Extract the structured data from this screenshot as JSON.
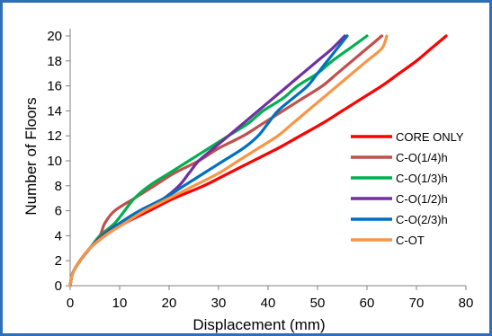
{
  "chart_data": {
    "type": "line",
    "xlabel": "Displacement (mm)",
    "ylabel": "Number of Floors",
    "xlim": [
      0,
      80
    ],
    "ylim": [
      0,
      20
    ],
    "xticks": [
      0,
      10,
      20,
      30,
      40,
      50,
      60,
      70,
      80
    ],
    "yticks": [
      0,
      2,
      4,
      6,
      8,
      10,
      12,
      14,
      16,
      18,
      20
    ],
    "grid": false,
    "legend_position": "right",
    "series": [
      {
        "name": "CORE ONLY",
        "color": "#ff0000",
        "points": [
          [
            0,
            0
          ],
          [
            0.5,
            1
          ],
          [
            2,
            2
          ],
          [
            4,
            3
          ],
          [
            7,
            4
          ],
          [
            11,
            5
          ],
          [
            16,
            6
          ],
          [
            21,
            7
          ],
          [
            27,
            8
          ],
          [
            32,
            9
          ],
          [
            37,
            10
          ],
          [
            42,
            11
          ],
          [
            46.5,
            12
          ],
          [
            51,
            13
          ],
          [
            55,
            14
          ],
          [
            59,
            15
          ],
          [
            63,
            16
          ],
          [
            66.5,
            17
          ],
          [
            70,
            18
          ],
          [
            73,
            19
          ],
          [
            76,
            20
          ]
        ]
      },
      {
        "name": "C-O(1/4)h",
        "color": "#c0504d",
        "points": [
          [
            0,
            0
          ],
          [
            0.5,
            1
          ],
          [
            2,
            2
          ],
          [
            4,
            3
          ],
          [
            6,
            4
          ],
          [
            7,
            5
          ],
          [
            9,
            6
          ],
          [
            13,
            7
          ],
          [
            17,
            8
          ],
          [
            21,
            9
          ],
          [
            26,
            10
          ],
          [
            30,
            11
          ],
          [
            35,
            12
          ],
          [
            39,
            13
          ],
          [
            43,
            14
          ],
          [
            47,
            15
          ],
          [
            51,
            16
          ],
          [
            54,
            17
          ],
          [
            57,
            18
          ],
          [
            60,
            19
          ],
          [
            63,
            20
          ]
        ]
      },
      {
        "name": "C-O(1/3)h",
        "color": "#00b050",
        "points": [
          [
            0,
            0
          ],
          [
            0.5,
            1
          ],
          [
            2,
            2
          ],
          [
            4,
            3
          ],
          [
            6,
            4
          ],
          [
            9,
            5
          ],
          [
            11,
            6
          ],
          [
            13,
            7
          ],
          [
            16,
            8
          ],
          [
            20,
            9
          ],
          [
            24,
            10
          ],
          [
            28,
            11
          ],
          [
            32,
            12
          ],
          [
            36,
            13
          ],
          [
            39,
            14
          ],
          [
            43,
            15
          ],
          [
            46,
            16
          ],
          [
            50,
            17
          ],
          [
            53,
            18
          ],
          [
            56.5,
            19
          ],
          [
            60,
            20
          ]
        ]
      },
      {
        "name": "C-O(1/2)h",
        "color": "#7030a0",
        "points": [
          [
            0,
            0
          ],
          [
            0.5,
            1
          ],
          [
            2,
            2
          ],
          [
            4,
            3
          ],
          [
            6.5,
            4
          ],
          [
            10,
            5
          ],
          [
            15,
            6
          ],
          [
            19,
            7
          ],
          [
            22,
            8
          ],
          [
            24,
            9
          ],
          [
            26,
            10
          ],
          [
            29,
            11
          ],
          [
            32,
            12
          ],
          [
            35,
            13
          ],
          [
            38,
            14
          ],
          [
            41,
            15
          ],
          [
            44,
            16
          ],
          [
            47,
            17
          ],
          [
            50,
            18
          ],
          [
            53,
            19
          ],
          [
            55.5,
            20
          ]
        ]
      },
      {
        "name": "C-O(2/3)h",
        "color": "#0070c0",
        "points": [
          [
            0,
            0
          ],
          [
            0.5,
            1
          ],
          [
            2,
            2
          ],
          [
            4,
            3
          ],
          [
            7,
            4
          ],
          [
            10,
            5
          ],
          [
            14,
            6
          ],
          [
            19,
            7
          ],
          [
            23,
            8
          ],
          [
            27,
            9
          ],
          [
            31,
            10
          ],
          [
            35,
            11
          ],
          [
            38,
            12
          ],
          [
            40,
            13
          ],
          [
            42,
            14
          ],
          [
            45,
            15
          ],
          [
            48,
            16
          ],
          [
            50,
            17
          ],
          [
            52,
            18
          ],
          [
            54,
            19
          ],
          [
            56,
            20
          ]
        ]
      },
      {
        "name": "C-OT",
        "color": "#f79646",
        "points": [
          [
            0,
            0
          ],
          [
            0.5,
            1
          ],
          [
            2,
            2
          ],
          [
            4,
            3
          ],
          [
            7,
            4
          ],
          [
            11,
            5
          ],
          [
            15,
            6
          ],
          [
            20,
            7
          ],
          [
            25,
            8
          ],
          [
            30,
            9
          ],
          [
            34,
            10
          ],
          [
            38,
            11
          ],
          [
            42,
            12
          ],
          [
            45,
            13
          ],
          [
            48,
            14
          ],
          [
            51,
            15
          ],
          [
            54,
            16
          ],
          [
            57,
            17
          ],
          [
            60,
            18
          ],
          [
            63,
            19
          ],
          [
            64,
            20
          ]
        ]
      }
    ]
  }
}
